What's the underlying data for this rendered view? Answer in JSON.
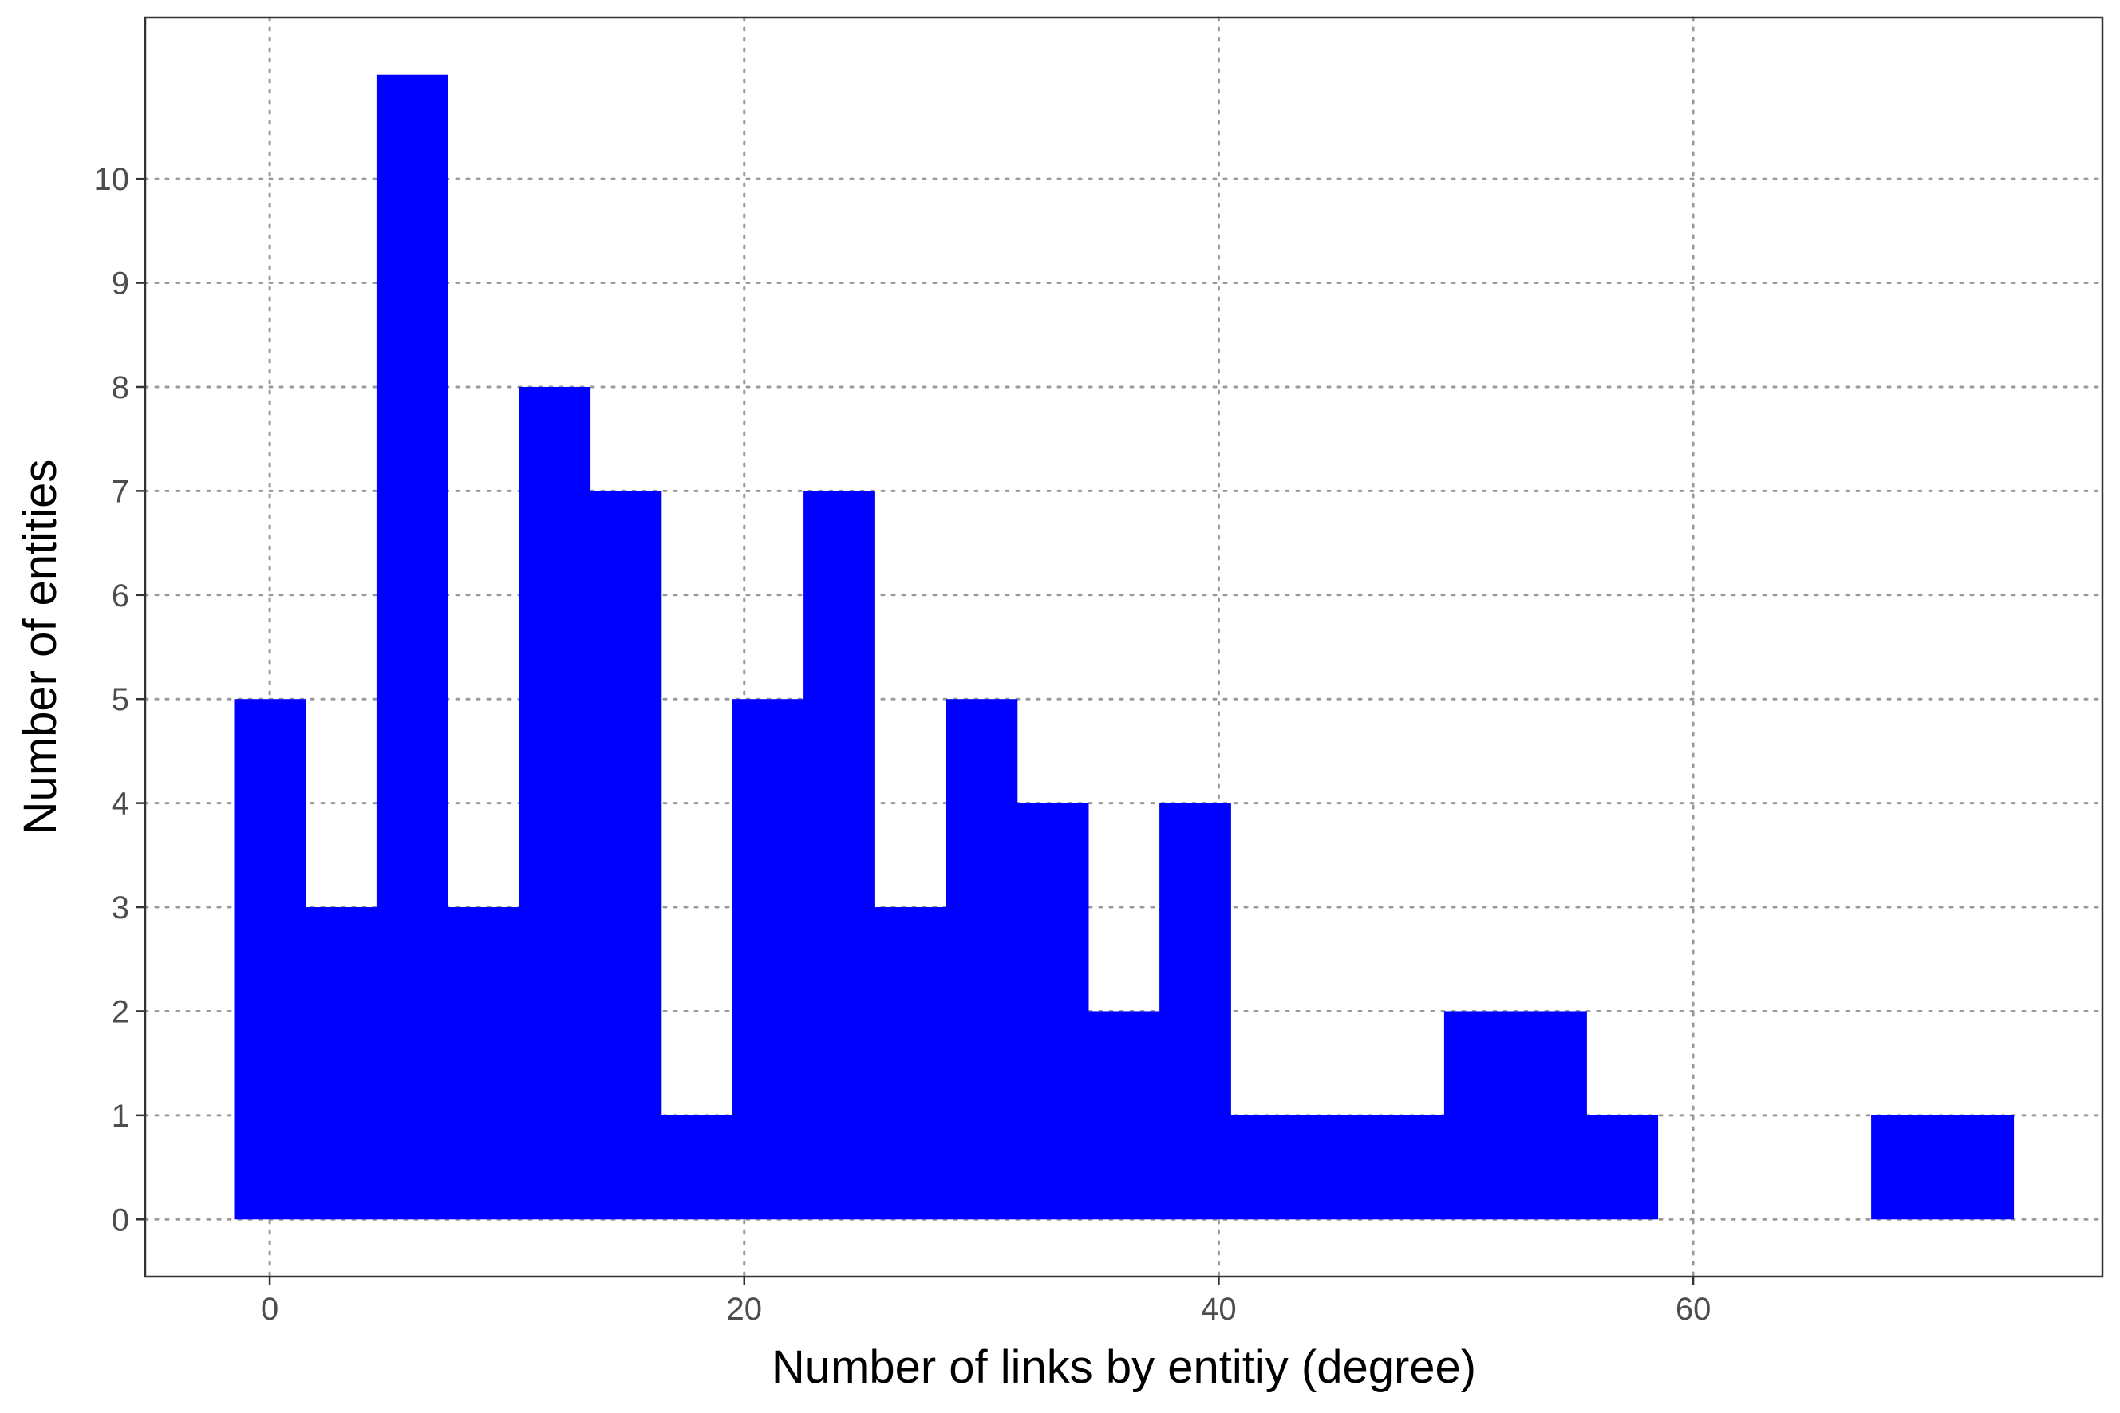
{
  "chart_data": {
    "type": "bar",
    "title": "",
    "xlabel": "Number of links by entitiy (degree)",
    "ylabel": "Number of entities",
    "bins": [
      {
        "x0": -1.5,
        "x1": 1.5,
        "count": 5
      },
      {
        "x0": 1.5,
        "x1": 4.5,
        "count": 3
      },
      {
        "x0": 4.5,
        "x1": 7.5,
        "count": 11
      },
      {
        "x0": 7.5,
        "x1": 10.5,
        "count": 3
      },
      {
        "x0": 10.5,
        "x1": 13.5,
        "count": 8
      },
      {
        "x0": 13.5,
        "x1": 16.5,
        "count": 7
      },
      {
        "x0": 16.5,
        "x1": 19.5,
        "count": 1
      },
      {
        "x0": 19.5,
        "x1": 22.5,
        "count": 5
      },
      {
        "x0": 22.5,
        "x1": 25.5,
        "count": 7
      },
      {
        "x0": 25.5,
        "x1": 28.5,
        "count": 3
      },
      {
        "x0": 28.5,
        "x1": 31.5,
        "count": 5
      },
      {
        "x0": 31.5,
        "x1": 34.5,
        "count": 4
      },
      {
        "x0": 34.5,
        "x1": 37.5,
        "count": 2
      },
      {
        "x0": 37.5,
        "x1": 40.5,
        "count": 4
      },
      {
        "x0": 40.5,
        "x1": 43.5,
        "count": 1
      },
      {
        "x0": 43.5,
        "x1": 46.5,
        "count": 1
      },
      {
        "x0": 46.5,
        "x1": 49.5,
        "count": 1
      },
      {
        "x0": 49.5,
        "x1": 52.5,
        "count": 2
      },
      {
        "x0": 52.5,
        "x1": 55.5,
        "count": 2
      },
      {
        "x0": 55.5,
        "x1": 58.5,
        "count": 1
      },
      {
        "x0": 58.5,
        "x1": 61.5,
        "count": 0
      },
      {
        "x0": 61.5,
        "x1": 64.5,
        "count": 0
      },
      {
        "x0": 64.5,
        "x1": 67.5,
        "count": 0
      },
      {
        "x0": 67.5,
        "x1": 70.5,
        "count": 1
      },
      {
        "x0": 70.5,
        "x1": 73.5,
        "count": 1
      }
    ],
    "xlim": [
      -5.25,
      77.25
    ],
    "ylim": [
      -0.55,
      11.55
    ],
    "xticks": [
      0,
      20,
      40,
      60
    ],
    "yticks": [
      0,
      1,
      2,
      3,
      4,
      5,
      6,
      7,
      8,
      9,
      10
    ],
    "grid": true,
    "grid_style": "dotted",
    "legend": "none",
    "colors": {
      "bar": "#0000ff",
      "grid": "#9a9a9a",
      "border": "#333333",
      "tick_text": "#4d4d4d"
    }
  }
}
